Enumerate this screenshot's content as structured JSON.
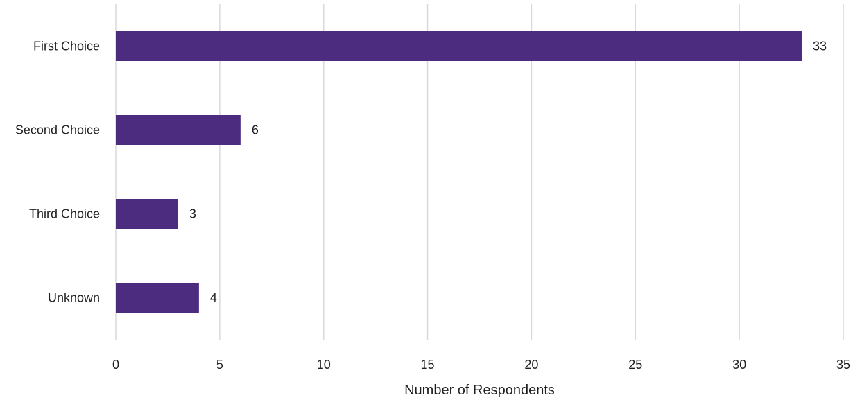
{
  "chart_data": {
    "type": "bar",
    "orientation": "horizontal",
    "title": "",
    "xlabel": "Number of Respondents",
    "ylabel": "",
    "categories": [
      "First Choice",
      "Second Choice",
      "Third Choice",
      "Unknown"
    ],
    "values": [
      33,
      6,
      3,
      4
    ],
    "data_labels": [
      "33",
      "6",
      "3",
      "4"
    ],
    "xlim": [
      0,
      35
    ],
    "x_ticks": [
      0,
      5,
      10,
      15,
      20,
      25,
      30,
      35
    ],
    "x_tick_labels": [
      "0",
      "5",
      "10",
      "15",
      "20",
      "25",
      "30",
      "35"
    ],
    "grid": "vertical",
    "legend": "none",
    "bar_color": "#4B2C7F",
    "grid_color": "#D9D9D9",
    "text_color": "#1F1F1F"
  }
}
